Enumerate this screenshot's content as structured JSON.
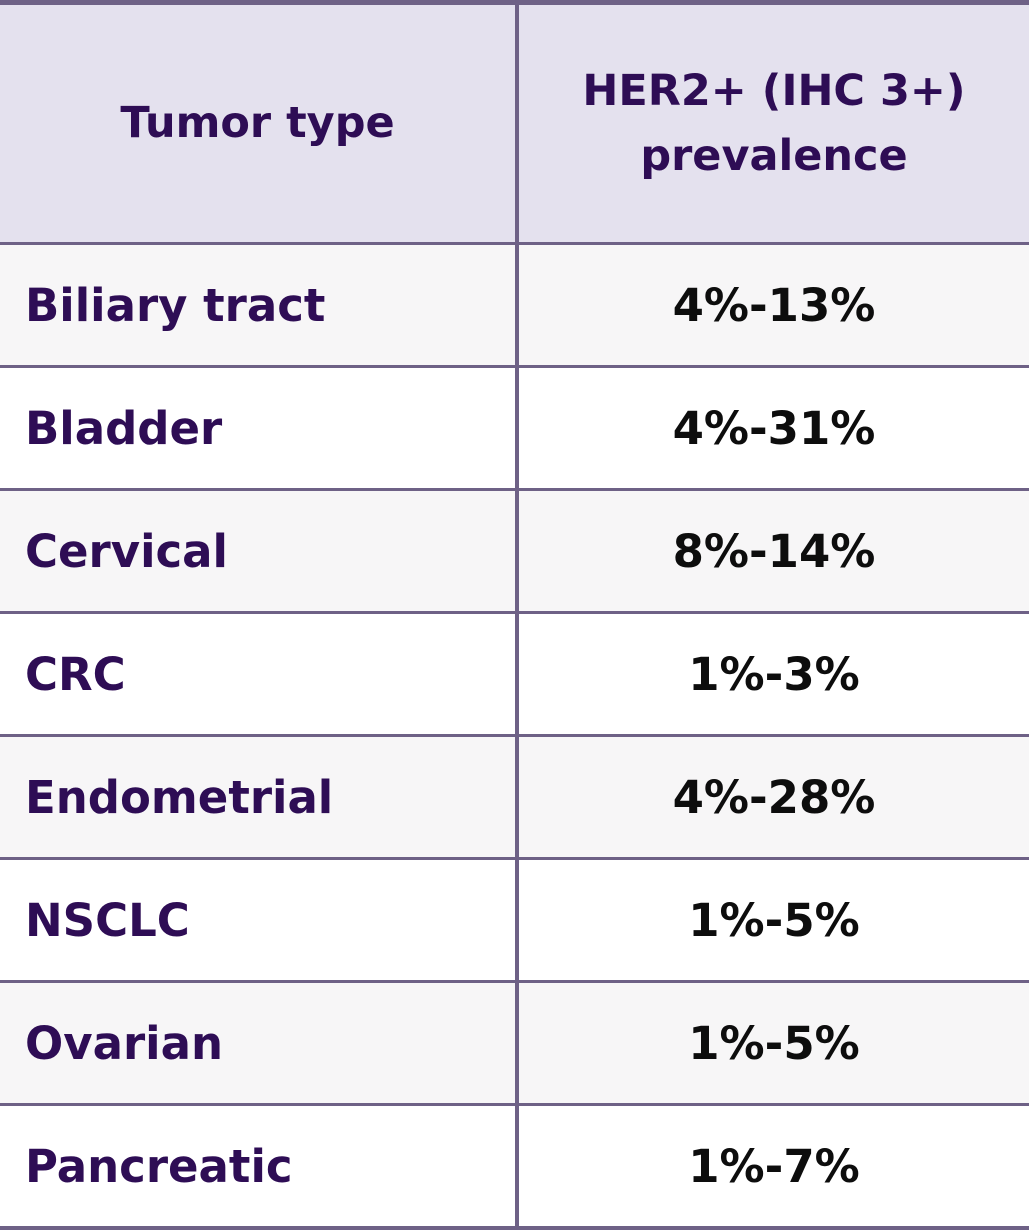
{
  "colors": {
    "border": "#6e6186",
    "header_bg": "#e4e1ee",
    "row_alt_bg": "#f7f6f7",
    "row_bg": "#ffffff",
    "heading_text": "#2e0d55",
    "value_text": "#0d0d0d"
  },
  "header": {
    "col1": "Tumor type",
    "col2_line1": "HER2+ (IHC 3+)",
    "col2_line2": "prevalence"
  },
  "rows": [
    {
      "tumor": "Biliary tract",
      "prevalence": "4%-13%"
    },
    {
      "tumor": "Bladder",
      "prevalence": "4%-31%"
    },
    {
      "tumor": "Cervical",
      "prevalence": "8%-14%"
    },
    {
      "tumor": "CRC",
      "prevalence": "1%-3%"
    },
    {
      "tumor": "Endometrial",
      "prevalence": "4%-28%"
    },
    {
      "tumor": "NSCLC",
      "prevalence": "1%-5%"
    },
    {
      "tumor": "Ovarian",
      "prevalence": "1%-5%"
    },
    {
      "tumor": "Pancreatic",
      "prevalence": "1%-7%"
    }
  ]
}
